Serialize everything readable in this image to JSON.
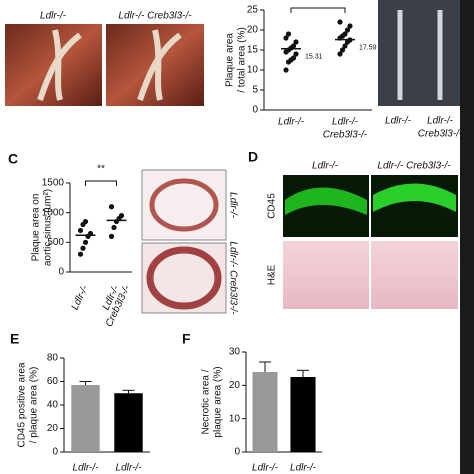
{
  "chart_data": [
    {
      "type": "dot",
      "ylabel": [
        "Plaque area",
        "/ total area (%)"
      ],
      "categories": [
        [
          "Ldlr-/-"
        ],
        [
          "Ldlr-/-",
          "Creb3l3-/-"
        ]
      ],
      "points": [
        [
          10,
          12,
          12.5,
          13,
          14,
          14.5,
          15,
          15.5,
          16,
          17,
          18,
          19
        ],
        [
          14,
          15,
          16,
          17,
          17.5,
          18,
          18.5,
          19,
          20,
          21,
          22
        ]
      ],
      "means": [
        15.31,
        17.59
      ],
      "color": "#111111",
      "ylim": [
        0,
        25
      ],
      "yticks": [
        0,
        5,
        10,
        15,
        20,
        25
      ]
    },
    {
      "type": "dot",
      "ylabel": [
        "Plaque area on",
        "aortic sinus (um²)"
      ],
      "categories": [
        [
          "Ldlr-/-"
        ],
        [
          "Ldlr-/-",
          "Creb3l3-/-"
        ]
      ],
      "points": [
        [
          300,
          400,
          500,
          600,
          650,
          700,
          800,
          850
        ],
        [
          600,
          750,
          850,
          900,
          950,
          1100
        ]
      ],
      "means": [
        620,
        870
      ],
      "color": "#111111",
      "annotation": "**",
      "ylim": [
        0,
        1500
      ],
      "yticks": [
        0,
        500,
        1000,
        1500
      ]
    },
    {
      "type": "bar",
      "ylabel": [
        "CD45 positive area",
        "/ plaque area (%)"
      ],
      "categories": [
        [
          "Ldlr-/-"
        ],
        [
          "Ldlr-/-"
        ]
      ],
      "values": [
        57,
        50
      ],
      "errors": [
        3,
        2.5
      ],
      "colors": [
        "#999999",
        "#000000"
      ],
      "ylim": [
        0,
        80
      ],
      "yticks": [
        0,
        20,
        40,
        60,
        80
      ]
    },
    {
      "type": "bar",
      "ylabel": [
        "Necrotic area /",
        "plaque area (%)"
      ],
      "categories": [
        [
          "Ldlr-/-"
        ],
        [
          "Ldlr-/-"
        ]
      ],
      "values": [
        24,
        22.5
      ],
      "errors": [
        3,
        2
      ],
      "colors": [
        "#999999",
        "#000000"
      ],
      "ylim": [
        0,
        30
      ],
      "yticks": [
        0,
        10,
        20,
        30
      ]
    }
  ],
  "panels": {
    "c": "C",
    "d": "D",
    "e": "E",
    "f": "F",
    "top_photos": [
      "Ldlr-/-",
      "Ldlr-/- Creb3l3-/-"
    ],
    "aorta_labels": [
      [
        "Ldlr-/-"
      ],
      [
        "Ldlr-/-",
        "Creb3l3-/-"
      ]
    ],
    "c_photos": [
      "Ldlr-/-",
      "Ldlr-/- Creb3l3-/-"
    ],
    "d_columns": [
      "Ldlr-/-",
      "Ldlr-/- Creb3l3-/-"
    ],
    "d_rows": [
      "CD45",
      "H&E"
    ]
  }
}
